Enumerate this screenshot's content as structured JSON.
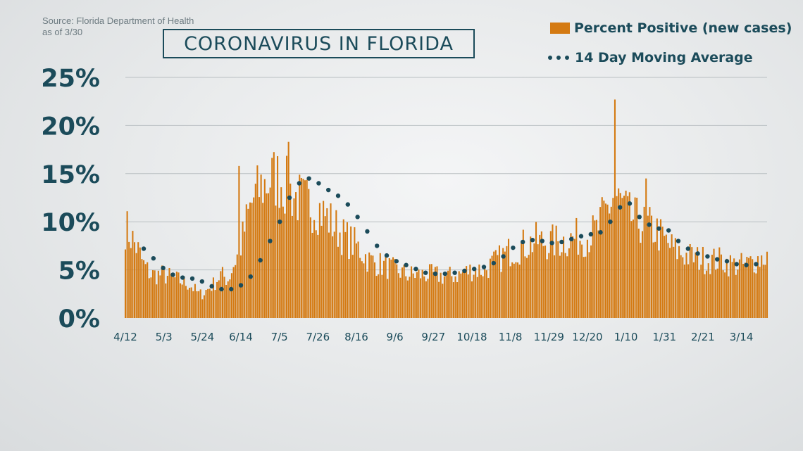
{
  "source_line1": "Source: Florida Department of Health",
  "source_line2": "as of 3/30",
  "title": "CORONAVIRUS IN FLORIDA",
  "colors": {
    "bar": "#d47a12",
    "dot": "#1b4b5a",
    "grid": "#b9bfc2",
    "text": "#1b4b5a"
  },
  "chart_data": {
    "type": "bar",
    "title": "CORONAVIRUS IN FLORIDA",
    "xlabel": "",
    "ylabel": "",
    "ylim": [
      0,
      25
    ],
    "y_ticks": [
      0,
      5,
      10,
      15,
      20,
      25
    ],
    "y_tick_labels": [
      "0%",
      "5%",
      "10%",
      "15%",
      "20%",
      "25%"
    ],
    "x_tick_labels": [
      "4/12",
      "5/3",
      "5/24",
      "6/14",
      "7/5",
      "7/26",
      "8/16",
      "9/6",
      "9/27",
      "10/18",
      "11/8",
      "11/29",
      "12/20",
      "1/10",
      "1/31",
      "2/21",
      "3/14"
    ],
    "x_tick_days": [
      0,
      21,
      42,
      63,
      84,
      105,
      126,
      147,
      168,
      189,
      210,
      231,
      252,
      273,
      294,
      315,
      336
    ],
    "n_days": 351,
    "grid": true,
    "legend_position": "top-right",
    "series": [
      {
        "name": "Percent Positive (new cases)",
        "kind": "bar",
        "anchors": [
          [
            0,
            9.5
          ],
          [
            3,
            8.5
          ],
          [
            7,
            7
          ],
          [
            10,
            5.5
          ],
          [
            14,
            4.5
          ],
          [
            21,
            4.5
          ],
          [
            28,
            4
          ],
          [
            35,
            3.5
          ],
          [
            40,
            2.5
          ],
          [
            42,
            2.5
          ],
          [
            48,
            3.5
          ],
          [
            52,
            4.5
          ],
          [
            56,
            4
          ],
          [
            60,
            6
          ],
          [
            63,
            7.5
          ],
          [
            66,
            10
          ],
          [
            70,
            12.5
          ],
          [
            74,
            13.5
          ],
          [
            80,
            14.5
          ],
          [
            84,
            14.5
          ],
          [
            88,
            13.5
          ],
          [
            93,
            12.5
          ],
          [
            98,
            12
          ],
          [
            105,
            11.5
          ],
          [
            112,
            10
          ],
          [
            119,
            8.5
          ],
          [
            126,
            7.5
          ],
          [
            133,
            6
          ],
          [
            140,
            5.5
          ],
          [
            147,
            5
          ],
          [
            154,
            4.5
          ],
          [
            161,
            4.5
          ],
          [
            168,
            4.5
          ],
          [
            175,
            4.3
          ],
          [
            182,
            4.5
          ],
          [
            189,
            5
          ],
          [
            196,
            5
          ],
          [
            203,
            6
          ],
          [
            210,
            7
          ],
          [
            217,
            7.5
          ],
          [
            224,
            8
          ],
          [
            231,
            7.8
          ],
          [
            238,
            8
          ],
          [
            245,
            8.3
          ],
          [
            252,
            8.5
          ],
          [
            257,
            9
          ],
          [
            262,
            11
          ],
          [
            266,
            12.5
          ],
          [
            270,
            12
          ],
          [
            275,
            10.5
          ],
          [
            280,
            10
          ],
          [
            285,
            9.5
          ],
          [
            290,
            9
          ],
          [
            294,
            8
          ],
          [
            300,
            7
          ],
          [
            306,
            6.5
          ],
          [
            312,
            6.2
          ],
          [
            318,
            6
          ],
          [
            325,
            6
          ],
          [
            332,
            5.5
          ],
          [
            338,
            5.5
          ],
          [
            344,
            6
          ],
          [
            350,
            6.5
          ]
        ]
      },
      {
        "name": "14 Day Moving Average",
        "kind": "dots",
        "values": [
          7.2,
          6.2,
          5.2,
          4.5,
          4.2,
          4.1,
          3.8,
          3.3,
          3.0,
          3.0,
          3.4,
          4.3,
          6.0,
          8.0,
          10.0,
          12.5,
          14.0,
          14.5,
          14.0,
          13.3,
          12.7,
          11.8,
          10.5,
          9.0,
          7.5,
          6.5,
          5.9,
          5.5,
          5.1,
          4.7,
          4.6,
          4.6,
          4.7,
          4.9,
          5.1,
          5.3,
          5.7,
          6.4,
          7.3,
          7.9,
          8.1,
          8.0,
          7.8,
          7.9,
          8.2,
          8.5,
          8.7,
          8.9,
          10.0,
          11.5,
          11.9,
          10.5,
          9.7,
          9.3,
          9.1,
          8.0,
          7.2,
          6.7,
          6.4,
          6.1,
          5.9,
          5.6,
          5.5,
          5.6
        ]
      }
    ],
    "spikes": [
      [
        267,
        22.7
      ],
      [
        284,
        14.5
      ],
      [
        89,
        18.3
      ],
      [
        62,
        15.8
      ]
    ]
  }
}
